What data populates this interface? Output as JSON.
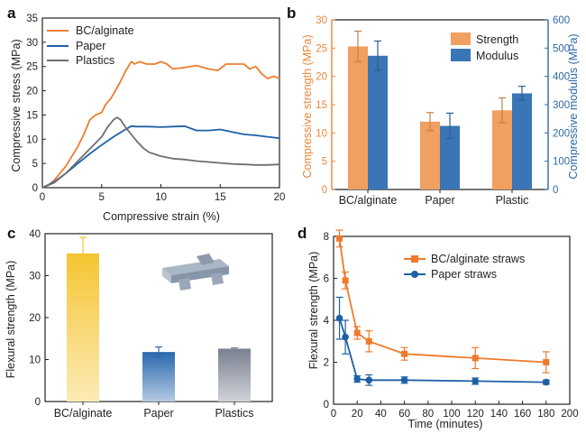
{
  "chart_data": [
    {
      "panel": "a",
      "type": "line",
      "xlabel": "Compressive strain (%)",
      "ylabel": "Compressive stress (MPa)",
      "xlim": [
        0,
        20
      ],
      "ylim": [
        0,
        35
      ],
      "xticks": [
        0,
        5,
        10,
        15,
        20
      ],
      "yticks": [
        0,
        5,
        10,
        15,
        20,
        25,
        30,
        35
      ],
      "legend": "top-left",
      "series": [
        {
          "name": "BC/alginate",
          "color": "#ef7d2e",
          "x": [
            0,
            0.5,
            1,
            2,
            3,
            3.5,
            4,
            4.5,
            5,
            5.3,
            5.8,
            6.5,
            7,
            7.5,
            7.8,
            8.2,
            8.8,
            9.5,
            10,
            10.5,
            11,
            12,
            13,
            14,
            14.8,
            15.5,
            16,
            17,
            17.5,
            18,
            18.5,
            19,
            19.5,
            20
          ],
          "y": [
            0,
            0.5,
            1.5,
            4.5,
            8.5,
            11,
            14,
            15,
            15.5,
            17,
            18.5,
            21.5,
            24,
            26,
            25.5,
            26,
            25.5,
            25.5,
            26,
            25.5,
            24.5,
            24.8,
            25.2,
            24.5,
            24.2,
            25.5,
            25.5,
            25.5,
            24.5,
            25,
            23.5,
            22.5,
            23,
            22.5
          ]
        },
        {
          "name": "Paper",
          "color": "#1f5fa8",
          "x": [
            0,
            1,
            2,
            3,
            4,
            5,
            6,
            7,
            7.5,
            8,
            9,
            10,
            11,
            12,
            13,
            14,
            15,
            16,
            17,
            18,
            19,
            20
          ],
          "y": [
            0,
            1.2,
            3,
            5,
            7,
            8.8,
            10.5,
            12,
            12.7,
            12.6,
            12.6,
            12.5,
            12.6,
            12.7,
            11.8,
            11.8,
            12,
            11.5,
            11,
            10.8,
            10.5,
            10.2
          ]
        },
        {
          "name": "Plastics",
          "color": "#6f6f6f",
          "x": [
            0,
            1,
            2,
            3,
            4,
            5,
            5.5,
            6,
            6.3,
            6.6,
            7,
            7.5,
            8,
            8.5,
            9,
            10,
            11,
            12,
            13,
            14,
            15,
            16,
            17,
            18,
            19,
            20
          ],
          "y": [
            0,
            1,
            3,
            5.5,
            8,
            10.5,
            12.5,
            14,
            14.5,
            14,
            12.5,
            11,
            9.5,
            8.2,
            7.3,
            6.5,
            6,
            5.8,
            5.5,
            5.3,
            5.1,
            4.9,
            4.8,
            4.7,
            4.7,
            4.8
          ]
        }
      ]
    },
    {
      "panel": "b",
      "type": "bar",
      "categories": [
        "BC/alginate",
        "Paper",
        "Plastic"
      ],
      "ylabel": "Compressive strength (MPa)",
      "y2label": "Compressive modulus (MPa)",
      "ylim": [
        0,
        30
      ],
      "y2lim": [
        0,
        600
      ],
      "yticks": [
        0,
        5,
        10,
        15,
        20,
        25,
        30
      ],
      "y2ticks": [
        0,
        100,
        200,
        300,
        400,
        500,
        600
      ],
      "legend": "top-right",
      "series": [
        {
          "name": "Strength",
          "axis": "left",
          "color": "#f0a060",
          "axis_color": "#e8873a",
          "values": [
            25.3,
            12.0,
            14.0
          ],
          "errors": [
            2.7,
            1.6,
            2.2
          ]
        },
        {
          "name": "Modulus",
          "axis": "right",
          "color": "#3a75b5",
          "axis_color": "#2f6aa8",
          "values": [
            473,
            225,
            340
          ],
          "errors": [
            52,
            45,
            25
          ]
        }
      ]
    },
    {
      "panel": "c",
      "type": "bar",
      "categories": [
        "BC/alginate",
        "Paper",
        "Plastics"
      ],
      "ylabel": "Flexural strength (MPa)",
      "ylim": [
        0,
        40
      ],
      "yticks": [
        0,
        10,
        20,
        30,
        40
      ],
      "colors": [
        "#f5c531",
        "#2a68ad",
        "#7a8090"
      ],
      "values": [
        35.3,
        11.8,
        12.6
      ],
      "errors": [
        3.8,
        1.2,
        0.2
      ]
    },
    {
      "panel": "d",
      "type": "line",
      "xlabel": "Time (minutes)",
      "ylabel": "Flexural strength (MPa)",
      "xlim": [
        0,
        200
      ],
      "ylim": [
        0,
        8
      ],
      "xticks": [
        0,
        20,
        40,
        60,
        80,
        100,
        120,
        140,
        160,
        180,
        200
      ],
      "yticks": [
        0,
        2,
        4,
        6,
        8
      ],
      "legend": "top-right",
      "series": [
        {
          "name": "BC/alginate straws",
          "color": "#ef7a2c",
          "marker": "square",
          "x": [
            5,
            10,
            20,
            30,
            60,
            120,
            180
          ],
          "y": [
            7.9,
            5.9,
            3.4,
            3.0,
            2.4,
            2.2,
            2.0
          ],
          "errors": [
            0.4,
            0.4,
            0.3,
            0.5,
            0.3,
            0.5,
            0.5
          ]
        },
        {
          "name": "Paper straws",
          "color": "#1d5fa6",
          "marker": "circle",
          "x": [
            5,
            10,
            20,
            30,
            60,
            120,
            180
          ],
          "y": [
            4.1,
            3.2,
            1.2,
            1.15,
            1.15,
            1.1,
            1.05
          ],
          "errors": [
            1.0,
            0.8,
            0.15,
            0.25,
            0.15,
            0.15,
            0.1
          ]
        }
      ]
    }
  ],
  "panel_labels": [
    "a",
    "b",
    "c",
    "d"
  ]
}
